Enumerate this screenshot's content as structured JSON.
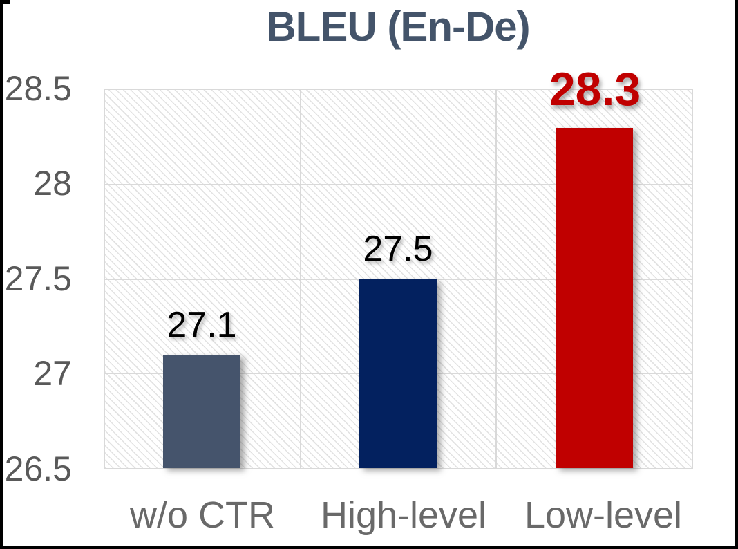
{
  "chart_data": {
    "type": "bar",
    "title": "BLEU (En-De)",
    "title_color": "#44546A",
    "categories": [
      "w/o CTR",
      "High-level",
      "Low-level"
    ],
    "values": [
      27.1,
      27.5,
      28.3
    ],
    "value_labels": [
      "27.1",
      "27.5",
      "28.3"
    ],
    "bar_colors": [
      "#45546C",
      "#03215F",
      "#C00000"
    ],
    "value_label_colors": [
      "#000000",
      "#000000",
      "#C00000"
    ],
    "ylim": [
      26.5,
      28.5
    ],
    "ytick_labels": [
      "28.5",
      "28",
      "27.5",
      "27",
      "26.5"
    ],
    "ylabel": "",
    "xlabel": "",
    "grid": true,
    "legend": false,
    "plot_background": "diagonal-hatch",
    "gridline_color": "#D9D9D9",
    "ytick_color": "#595959",
    "xtick_color": "#696969"
  }
}
